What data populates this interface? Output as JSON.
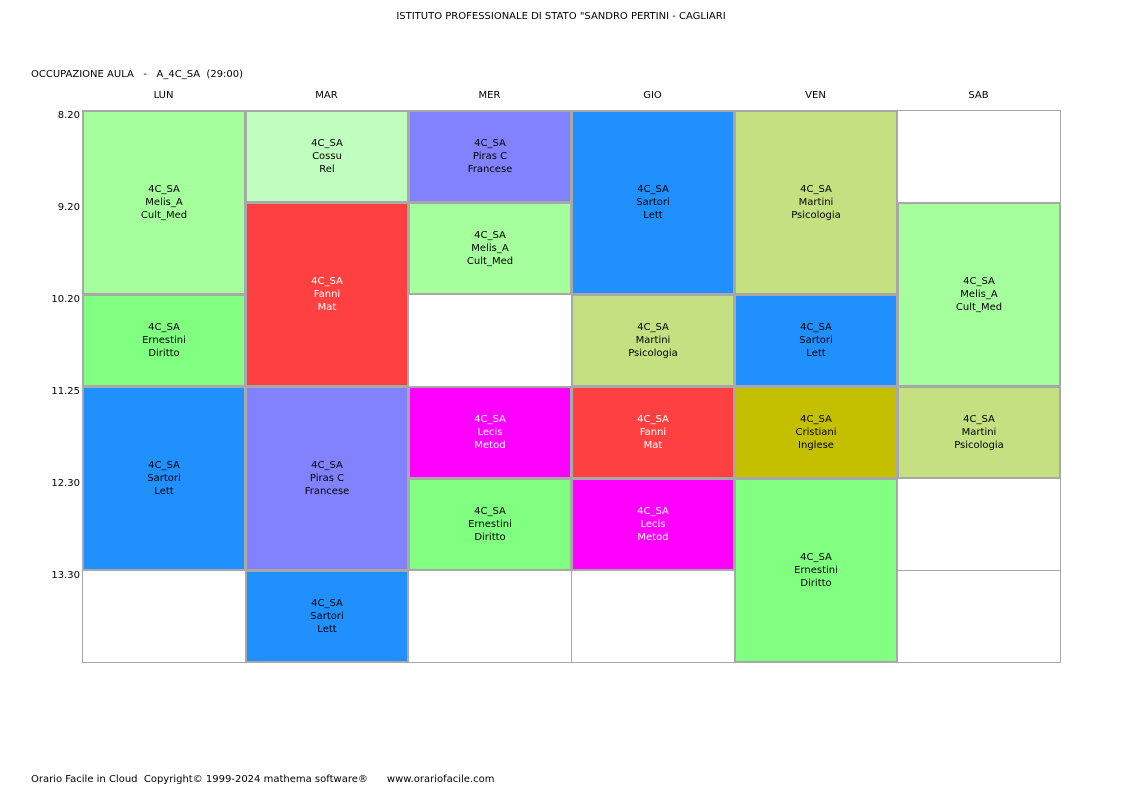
{
  "header": {
    "school_title": "ISTITUTO PROFESSIONALE DI STATO \"SANDRO PERTINI - CAGLIARI",
    "occupation_line": "OCCUPAZIONE AULA   -   A_4C_SA  (29:00)"
  },
  "days": [
    "LUN",
    "MAR",
    "MER",
    "GIO",
    "VEN",
    "SAB"
  ],
  "times": [
    "8.20",
    "9.20",
    "10.20",
    "11.25",
    "12.30",
    "13.30"
  ],
  "colors": {
    "light_green": "#a4ff9c",
    "pale_green": "#c0ffc0",
    "green": "#80ff80",
    "lavender": "#8282ff",
    "red": "#ff4040",
    "blue": "#2090ff",
    "olive_light": "#c4e080",
    "magenta": "#ff00ff",
    "olive": "#c4c000",
    "border": "#a8a8a8"
  },
  "lessons": [
    {
      "day": 0,
      "start": 0,
      "span": 2,
      "color": "#a4ff9c",
      "text_color": "#000000",
      "class": "4C_SA",
      "teacher": "Melis_A",
      "subject": "Cult_Med"
    },
    {
      "day": 0,
      "start": 2,
      "span": 1,
      "color": "#80ff80",
      "text_color": "#000000",
      "class": "4C_SA",
      "teacher": "Ernestini",
      "subject": "Diritto"
    },
    {
      "day": 0,
      "start": 3,
      "span": 2,
      "color": "#2090ff",
      "text_color": "#000000",
      "class": "4C_SA",
      "teacher": "Sartori",
      "subject": "Lett"
    },
    {
      "day": 1,
      "start": 0,
      "span": 1,
      "color": "#c0ffc0",
      "text_color": "#000000",
      "class": "4C_SA",
      "teacher": "Cossu",
      "subject": "Rel"
    },
    {
      "day": 1,
      "start": 1,
      "span": 2,
      "color": "#ff4040",
      "text_color": "#ffffff",
      "class": "4C_SA",
      "teacher": "Fanni",
      "subject": "Mat"
    },
    {
      "day": 1,
      "start": 3,
      "span": 2,
      "color": "#8282ff",
      "text_color": "#000000",
      "class": "4C_SA",
      "teacher": "Piras C",
      "subject": "Francese"
    },
    {
      "day": 1,
      "start": 5,
      "span": 1,
      "color": "#2090ff",
      "text_color": "#000000",
      "class": "4C_SA",
      "teacher": "Sartori",
      "subject": "Lett"
    },
    {
      "day": 2,
      "start": 0,
      "span": 1,
      "color": "#8282ff",
      "text_color": "#000000",
      "class": "4C_SA",
      "teacher": "Piras C",
      "subject": "Francese"
    },
    {
      "day": 2,
      "start": 1,
      "span": 1,
      "color": "#a4ff9c",
      "text_color": "#000000",
      "class": "4C_SA",
      "teacher": "Melis_A",
      "subject": "Cult_Med"
    },
    {
      "day": 2,
      "start": 3,
      "span": 1,
      "color": "#ff00ff",
      "text_color": "#ffffff",
      "class": "4C_SA",
      "teacher": "Lecis",
      "subject": "Metod"
    },
    {
      "day": 2,
      "start": 4,
      "span": 1,
      "color": "#80ff80",
      "text_color": "#000000",
      "class": "4C_SA",
      "teacher": "Ernestini",
      "subject": "Diritto"
    },
    {
      "day": 3,
      "start": 0,
      "span": 2,
      "color": "#2090ff",
      "text_color": "#000000",
      "class": "4C_SA",
      "teacher": "Sartori",
      "subject": "Lett"
    },
    {
      "day": 3,
      "start": 2,
      "span": 1,
      "color": "#c4e080",
      "text_color": "#000000",
      "class": "4C_SA",
      "teacher": "Martini",
      "subject": "Psicologia"
    },
    {
      "day": 3,
      "start": 3,
      "span": 1,
      "color": "#ff4040",
      "text_color": "#ffffff",
      "class": "4C_SA",
      "teacher": "Fanni",
      "subject": "Mat"
    },
    {
      "day": 3,
      "start": 4,
      "span": 1,
      "color": "#ff00ff",
      "text_color": "#ffffff",
      "class": "4C_SA",
      "teacher": "Lecis",
      "subject": "Metod"
    },
    {
      "day": 4,
      "start": 0,
      "span": 2,
      "color": "#c4e080",
      "text_color": "#000000",
      "class": "4C_SA",
      "teacher": "Martini",
      "subject": "Psicologia"
    },
    {
      "day": 4,
      "start": 2,
      "span": 1,
      "color": "#2090ff",
      "text_color": "#000000",
      "class": "4C_SA",
      "teacher": "Sartori",
      "subject": "Lett"
    },
    {
      "day": 4,
      "start": 3,
      "span": 1,
      "color": "#c4c000",
      "text_color": "#000000",
      "class": "4C_SA",
      "teacher": "Cristiani",
      "subject": "Inglese"
    },
    {
      "day": 4,
      "start": 4,
      "span": 2,
      "color": "#80ff80",
      "text_color": "#000000",
      "class": "4C_SA",
      "teacher": "Ernestini",
      "subject": "Diritto"
    },
    {
      "day": 5,
      "start": 1,
      "span": 2,
      "color": "#a4ff9c",
      "text_color": "#000000",
      "class": "4C_SA",
      "teacher": "Melis_A",
      "subject": "Cult_Med"
    },
    {
      "day": 5,
      "start": 3,
      "span": 1,
      "color": "#c4e080",
      "text_color": "#000000",
      "class": "4C_SA",
      "teacher": "Martini",
      "subject": "Psicologia"
    }
  ],
  "footer": {
    "text": "Orario Facile in Cloud  Copyright© 1999-2024 mathema software®      www.orariofacile.com"
  }
}
